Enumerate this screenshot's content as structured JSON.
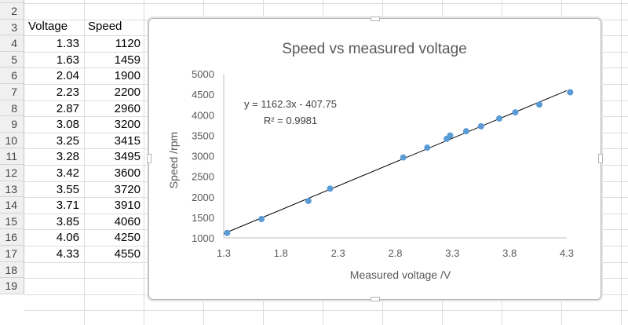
{
  "sheet": {
    "row_numbers": [
      "2",
      "3",
      "4",
      "5",
      "6",
      "7",
      "8",
      "9",
      "10",
      "11",
      "12",
      "13",
      "14",
      "15",
      "16",
      "17",
      "18",
      "19"
    ],
    "header": {
      "voltage": "Voltage",
      "speed": "Speed"
    },
    "rows": [
      {
        "voltage": "1.33",
        "speed": "1120"
      },
      {
        "voltage": "1.63",
        "speed": "1459"
      },
      {
        "voltage": "2.04",
        "speed": "1900"
      },
      {
        "voltage": "2.23",
        "speed": "2200"
      },
      {
        "voltage": "2.87",
        "speed": "2960"
      },
      {
        "voltage": "3.08",
        "speed": "3200"
      },
      {
        "voltage": "3.25",
        "speed": "3415"
      },
      {
        "voltage": "3.28",
        "speed": "3495"
      },
      {
        "voltage": "3.42",
        "speed": "3600"
      },
      {
        "voltage": "3.55",
        "speed": "3720"
      },
      {
        "voltage": "3.71",
        "speed": "3910"
      },
      {
        "voltage": "3.85",
        "speed": "4060"
      },
      {
        "voltage": "4.06",
        "speed": "4250"
      },
      {
        "voltage": "4.33",
        "speed": "4550"
      }
    ]
  },
  "chart_data": {
    "type": "scatter",
    "title": "Speed vs measured voltage",
    "xlabel": "Measured voltage /V",
    "ylabel": "Speed /rpm",
    "xlim": [
      1.3,
      4.3
    ],
    "ylim": [
      1000,
      5000
    ],
    "x_ticks": [
      "1.3",
      "1.8",
      "2.3",
      "2.8",
      "3.3",
      "3.8",
      "4.3"
    ],
    "y_ticks": [
      "1000",
      "1500",
      "2000",
      "2500",
      "3000",
      "3500",
      "4000",
      "4500",
      "5000"
    ],
    "x": [
      1.33,
      1.63,
      2.04,
      2.23,
      2.87,
      3.08,
      3.25,
      3.28,
      3.42,
      3.55,
      3.71,
      3.85,
      4.06,
      4.33
    ],
    "y": [
      1120,
      1459,
      1900,
      2200,
      2960,
      3200,
      3415,
      3495,
      3600,
      3720,
      3910,
      4060,
      4250,
      4550
    ],
    "trendline": {
      "slope": 1162.3,
      "intercept": -407.75,
      "color": "#000000"
    },
    "trendline_equation": "y = 1162.3x - 407.75",
    "r_squared": "R² = 0.9981",
    "grid": false,
    "legend": "none",
    "marker_color": "#5b9bd5"
  }
}
